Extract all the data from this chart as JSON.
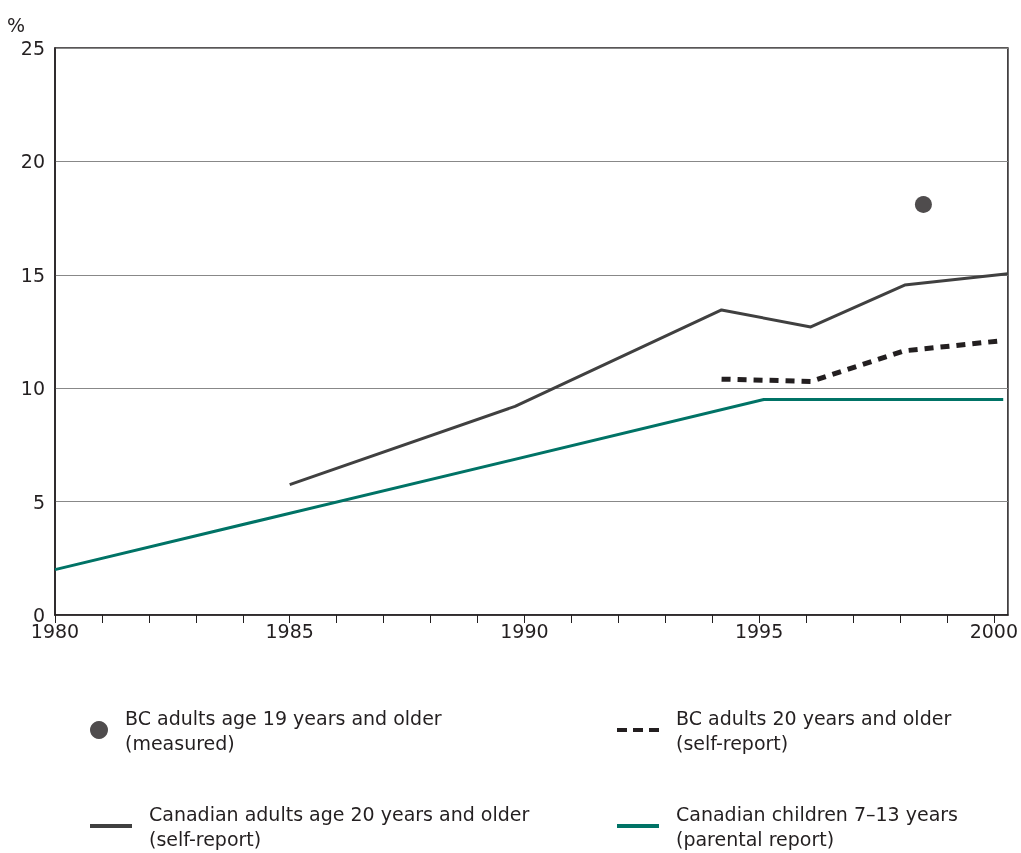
{
  "chart_data": {
    "type": "line",
    "ylabel": "%",
    "xlim": [
      1980,
      2000.3
    ],
    "xticks": [
      1980,
      {
        "value": 1981,
        "label": null
      },
      {
        "value": 1982,
        "label": null
      },
      {
        "value": 1983,
        "label": null
      },
      {
        "value": 1984,
        "label": null
      },
      1985,
      {
        "value": 1986,
        "label": null
      },
      {
        "value": 1987,
        "label": null
      },
      {
        "value": 1988,
        "label": null
      },
      {
        "value": 1989,
        "label": null
      },
      1990,
      {
        "value": 1991,
        "label": null
      },
      {
        "value": 1992,
        "label": null
      },
      {
        "value": 1993,
        "label": null
      },
      {
        "value": 1994,
        "label": null
      },
      1995,
      {
        "value": 1996,
        "label": null
      },
      {
        "value": 1997,
        "label": null
      },
      {
        "value": 1998,
        "label": null
      },
      {
        "value": 1999,
        "label": null
      },
      2000
    ],
    "ylim": [
      0,
      25
    ],
    "yticks": [
      0,
      5,
      10,
      15,
      20,
      25
    ],
    "grid": "y",
    "legend": "bottom",
    "series": [
      {
        "name": "BC adults age 19 years and older (measured)",
        "type": "scatter",
        "marker": "circle",
        "color": "#231f20",
        "x": [
          1998.5
        ],
        "values": [
          18.1
        ]
      },
      {
        "name": "BC adults 20 years and older (self-report)",
        "line_style": "dashed",
        "color": "#231f20",
        "x": [
          1994.2,
          1996.1,
          1998.1,
          2000.2
        ],
        "values": [
          10.4,
          10.3,
          11.65,
          12.1
        ]
      },
      {
        "name": "Canadian adults age 20 years and older (self-report)",
        "line_style": "solid",
        "color": "#404040",
        "x": [
          1985,
          1989.8,
          1994.2,
          1996.1,
          1998.1,
          2000.3
        ],
        "values": [
          5.75,
          9.2,
          13.45,
          12.7,
          14.55,
          15.05
        ]
      },
      {
        "name": "Canadian children 7–13 years (parental report)",
        "line_style": "solid",
        "color": "#007366",
        "x": [
          1980,
          1995.1,
          2000.2
        ],
        "values": [
          2.0,
          9.5,
          9.5
        ]
      }
    ]
  }
}
